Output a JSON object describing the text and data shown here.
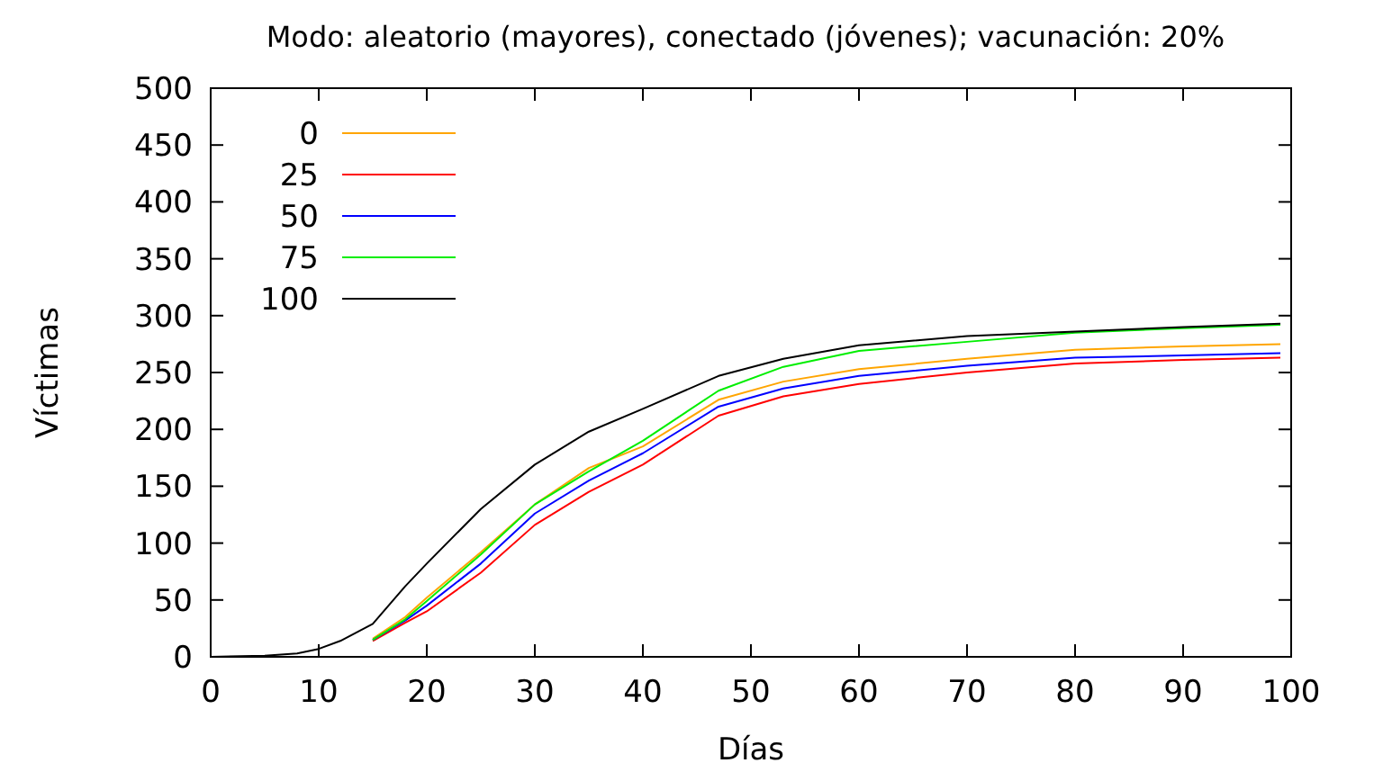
{
  "chart_data": {
    "type": "line",
    "title": "Modo: aleatorio (mayores), conectado (jóvenes); vacunación: 20%",
    "xlabel": "Días",
    "ylabel": "Víctimas",
    "x": [
      0,
      5,
      8,
      10,
      12,
      15,
      18,
      20,
      25,
      30,
      35,
      40,
      47,
      53,
      60,
      70,
      80,
      90,
      99
    ],
    "xlim": [
      0,
      100
    ],
    "xticks": [
      0,
      10,
      20,
      30,
      40,
      50,
      60,
      70,
      80,
      90,
      100
    ],
    "ylim": [
      0,
      500
    ],
    "yticks": [
      0,
      50,
      100,
      150,
      200,
      250,
      300,
      350,
      400,
      450,
      500
    ],
    "legend": "top left",
    "grid": false,
    "series": [
      {
        "name": "0",
        "color": "#ffa500",
        "x": [
          15,
          18,
          20,
          25,
          30,
          35,
          40,
          47,
          53,
          60,
          70,
          80,
          90,
          99
        ],
        "values": [
          16,
          35,
          52,
          92,
          134,
          166,
          185,
          226,
          242,
          253,
          262,
          270,
          273,
          275
        ]
      },
      {
        "name": "25",
        "color": "#ff0000",
        "x": [
          15,
          18,
          20,
          25,
          30,
          35,
          40,
          47,
          53,
          60,
          70,
          80,
          90,
          99
        ],
        "values": [
          14,
          30,
          40,
          74,
          116,
          145,
          169,
          212,
          229,
          240,
          250,
          258,
          261,
          263
        ]
      },
      {
        "name": "50",
        "color": "#0000ff",
        "x": [
          15,
          18,
          20,
          25,
          30,
          35,
          40,
          47,
          53,
          60,
          70,
          80,
          90,
          99
        ],
        "values": [
          15,
          32,
          45,
          82,
          126,
          155,
          179,
          220,
          236,
          247,
          256,
          263,
          265,
          267
        ]
      },
      {
        "name": "75",
        "color": "#00ee00",
        "x": [
          15,
          18,
          20,
          25,
          30,
          35,
          40,
          47,
          53,
          60,
          70,
          80,
          90,
          99
        ],
        "values": [
          15,
          33,
          49,
          90,
          134,
          163,
          190,
          234,
          255,
          269,
          277,
          285,
          289,
          292
        ]
      },
      {
        "name": "100",
        "color": "#000000",
        "values": [
          0,
          1,
          3,
          7,
          14,
          29,
          62,
          82,
          130,
          169,
          198,
          218,
          247,
          262,
          274,
          282,
          286,
          290,
          293
        ]
      }
    ]
  }
}
